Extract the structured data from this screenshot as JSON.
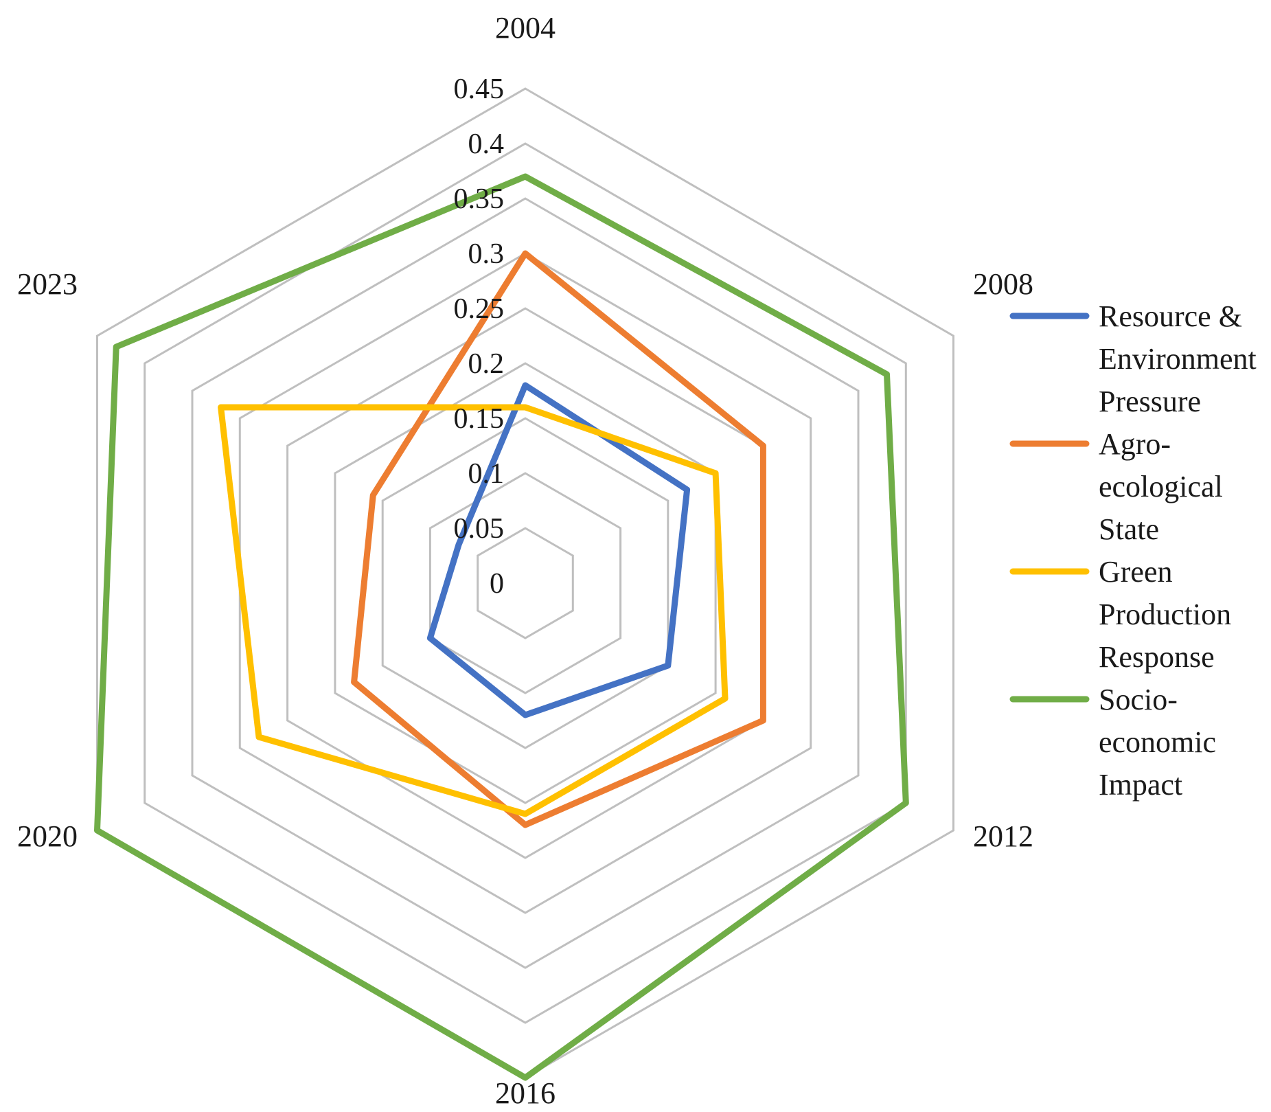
{
  "chart_data": {
    "type": "radar",
    "categories": [
      "2004",
      "2008",
      "2012",
      "2016",
      "2020",
      "2023"
    ],
    "rlim": [
      0,
      0.45
    ],
    "r_ticks": [
      0,
      0.05,
      0.1,
      0.15,
      0.2,
      0.25,
      0.3,
      0.35,
      0.4,
      0.45
    ],
    "r_tick_labels": [
      "0",
      "0.05",
      "0.1",
      "0.15",
      "0.2",
      "0.25",
      "0.3",
      "0.35",
      "0.4",
      "0.45"
    ],
    "grid": true,
    "legend_position": "right",
    "series": [
      {
        "name": "Resource & Environment Pressure",
        "legend_lines": [
          "Resource &",
          "Environment",
          "Pressure"
        ],
        "color": "#4472C4",
        "values": [
          0.18,
          0.17,
          0.15,
          0.12,
          0.1,
          0.07
        ]
      },
      {
        "name": "Agro-ecological State",
        "legend_lines": [
          "Agro-",
          "ecological",
          "State"
        ],
        "color": "#ED7D31",
        "values": [
          0.3,
          0.25,
          0.25,
          0.22,
          0.18,
          0.16
        ]
      },
      {
        "name": "Green Production Response",
        "legend_lines": [
          "Green",
          "Production",
          "Response"
        ],
        "color": "#FFC000",
        "values": [
          0.16,
          0.2,
          0.21,
          0.21,
          0.28,
          0.32
        ]
      },
      {
        "name": "Socio-economic Impact",
        "legend_lines": [
          "Socio-",
          "economic",
          "Impact"
        ],
        "color": "#70AD47",
        "values": [
          0.37,
          0.38,
          0.4,
          0.45,
          0.45,
          0.43
        ]
      }
    ]
  }
}
